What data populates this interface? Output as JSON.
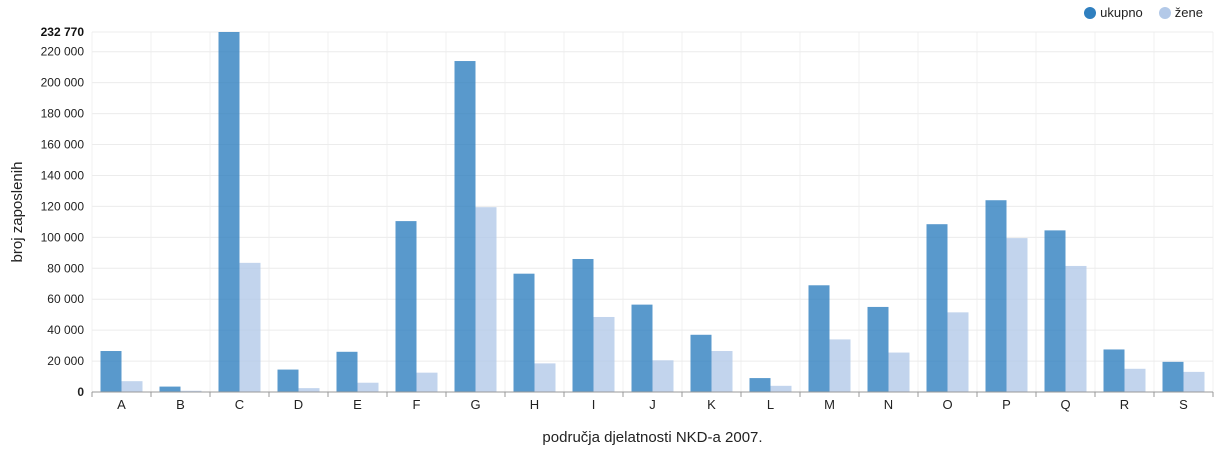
{
  "chart_data": {
    "type": "bar",
    "categories": [
      "A",
      "B",
      "C",
      "D",
      "E",
      "F",
      "G",
      "H",
      "I",
      "J",
      "K",
      "L",
      "M",
      "N",
      "O",
      "P",
      "Q",
      "R",
      "S"
    ],
    "series": [
      {
        "name": "ukupno",
        "color": "#2f7fbf",
        "values": [
          26500,
          3500,
          232770,
          14500,
          26000,
          110500,
          214000,
          76500,
          86000,
          56500,
          37000,
          9000,
          69000,
          55000,
          108500,
          124000,
          104500,
          27500,
          19500
        ]
      },
      {
        "name": "žene",
        "color": "#b3c9e8",
        "values": [
          7000,
          800,
          83500,
          2500,
          6000,
          12500,
          119500,
          18500,
          48500,
          20500,
          26500,
          4000,
          34000,
          25500,
          51500,
          99500,
          81500,
          15000,
          13000
        ]
      }
    ],
    "ylabel": "broj zaposlenih",
    "xlabel": "područja djelatnosti NKD-a 2007.",
    "ylim": [
      0,
      232770
    ],
    "yticks": [
      "0",
      "20 000",
      "40 000",
      "60 000",
      "80 000",
      "100 000",
      "120 000",
      "140 000",
      "160 000",
      "180 000",
      "200 000",
      "220 000"
    ],
    "ymax_label": "232 770",
    "grid": true,
    "legend_position": "top-right"
  }
}
